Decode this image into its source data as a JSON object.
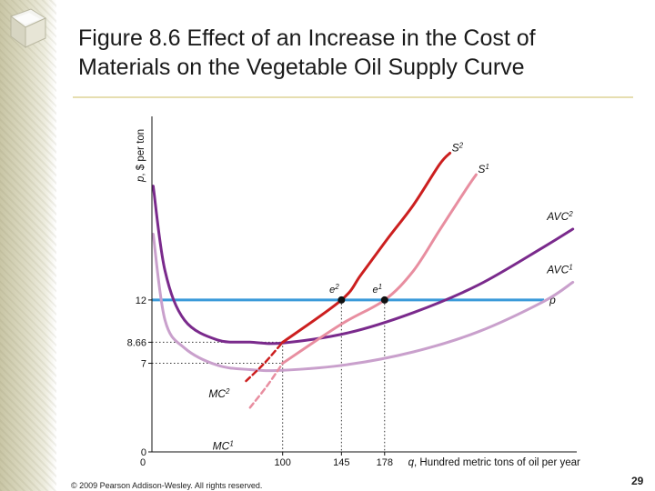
{
  "slide": {
    "title": "Figure 8.6 Effect of an Increase in the Cost of Materials on the Vegetable Oil Supply Curve",
    "copyright": "© 2009 Pearson Addison-Wesley. All rights reserved.",
    "page_number": "29"
  },
  "colors": {
    "mc1": "#e88ea0",
    "mc2": "#cc1f1f",
    "avc1": "#c9a0cc",
    "avc2": "#7a2a8c",
    "price": "#3a9ad9",
    "axis": "#111111"
  },
  "chart_data": {
    "type": "line",
    "title": "Figure 8.6 Effect of an Increase in the Cost of Materials on the Vegetable Oil Supply Curve",
    "xlabel": "q, Hundred metric tons of oil per year",
    "ylabel": "p, $ per ton",
    "xlim": [
      0,
      325
    ],
    "ylim": [
      0,
      26.5
    ],
    "grid": false,
    "x_ticks": [
      "0",
      "100",
      "145",
      "178"
    ],
    "y_ticks": [
      "0",
      "7",
      "8.66",
      "12"
    ],
    "series": [
      {
        "name": "AVC1",
        "label_base": "AVC",
        "label_sup": "1",
        "points": [
          [
            1,
            17.2
          ],
          [
            10,
            10.4
          ],
          [
            25,
            8.2
          ],
          [
            50,
            6.85
          ],
          [
            75,
            6.5
          ],
          [
            100,
            6.45
          ],
          [
            150,
            6.9
          ],
          [
            200,
            7.9
          ],
          [
            250,
            9.5
          ],
          [
            300,
            11.9
          ],
          [
            322,
            13.4
          ]
        ]
      },
      {
        "name": "AVC2",
        "label_base": "AVC",
        "label_sup": "2",
        "points": [
          [
            1,
            21.0
          ],
          [
            10,
            14.3
          ],
          [
            25,
            10.4
          ],
          [
            50,
            8.85
          ],
          [
            75,
            8.67
          ],
          [
            100,
            8.6
          ],
          [
            150,
            9.4
          ],
          [
            200,
            11.0
          ],
          [
            250,
            13.2
          ],
          [
            300,
            16.2
          ],
          [
            322,
            17.6
          ]
        ]
      },
      {
        "name": "S1",
        "label_base": "S",
        "label_sup": "1",
        "points": [
          [
            100,
            7.0
          ],
          [
            145,
            10.1
          ],
          [
            178,
            12.0
          ],
          [
            200,
            14.3
          ],
          [
            220,
            17.5
          ],
          [
            240,
            20.7
          ],
          [
            248,
            21.9
          ]
        ]
      },
      {
        "name": "MC1 (below AVC1)",
        "label_base": "MC",
        "label_sup": "1",
        "dashed": true,
        "points": [
          [
            75,
            3.5
          ],
          [
            88,
            5.2
          ],
          [
            100,
            7.0
          ]
        ]
      },
      {
        "name": "S2",
        "label_base": "S",
        "label_sup": "2",
        "points": [
          [
            100,
            8.66
          ],
          [
            145,
            12.0
          ],
          [
            160,
            14.0
          ],
          [
            180,
            16.8
          ],
          [
            200,
            19.5
          ],
          [
            220,
            22.7
          ],
          [
            228,
            23.6
          ]
        ]
      },
      {
        "name": "MC2 (below AVC2)",
        "label_base": "MC",
        "label_sup": "2",
        "dashed": true,
        "points": [
          [
            72,
            5.6
          ],
          [
            86,
            7.0
          ],
          [
            100,
            8.66
          ]
        ]
      }
    ],
    "price_line": {
      "label": "p",
      "value": 12,
      "xmax": 300
    },
    "equilibria": [
      {
        "name": "e1",
        "label_base": "e",
        "label_sup": "1",
        "x": 178,
        "y": 12
      },
      {
        "name": "e2",
        "label_base": "e",
        "label_sup": "2",
        "x": 145,
        "y": 12
      }
    ],
    "guide_lines": [
      {
        "type": "horizontal",
        "y": 8.66,
        "to_x": 100
      },
      {
        "type": "horizontal",
        "y": 7,
        "to_x": 100
      },
      {
        "type": "vertical",
        "x": 100,
        "from_y": 8.66
      },
      {
        "type": "vertical",
        "x": 145,
        "from_y": 12
      },
      {
        "type": "vertical",
        "x": 178,
        "from_y": 12
      }
    ]
  }
}
